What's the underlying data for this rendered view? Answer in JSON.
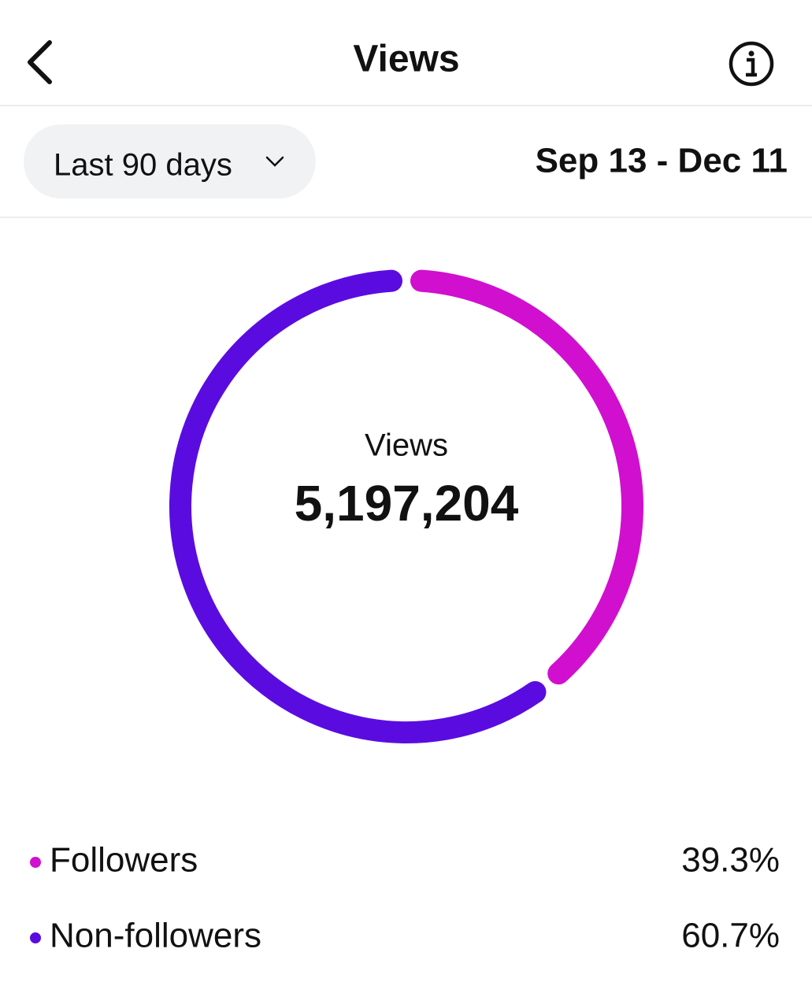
{
  "header": {
    "title": "Views"
  },
  "filter": {
    "period": "Last 90 days",
    "date_range": "Sep 13 - Dec 11"
  },
  "summary": {
    "label": "Views",
    "value": "5,197,204"
  },
  "chart_data": {
    "type": "donut",
    "categories": [
      "Followers",
      "Non-followers"
    ],
    "values": [
      39.3,
      60.7
    ],
    "value_labels": [
      "39.3%",
      "60.7%"
    ],
    "colors": [
      "#d10fcf",
      "#5a0ce0"
    ]
  }
}
